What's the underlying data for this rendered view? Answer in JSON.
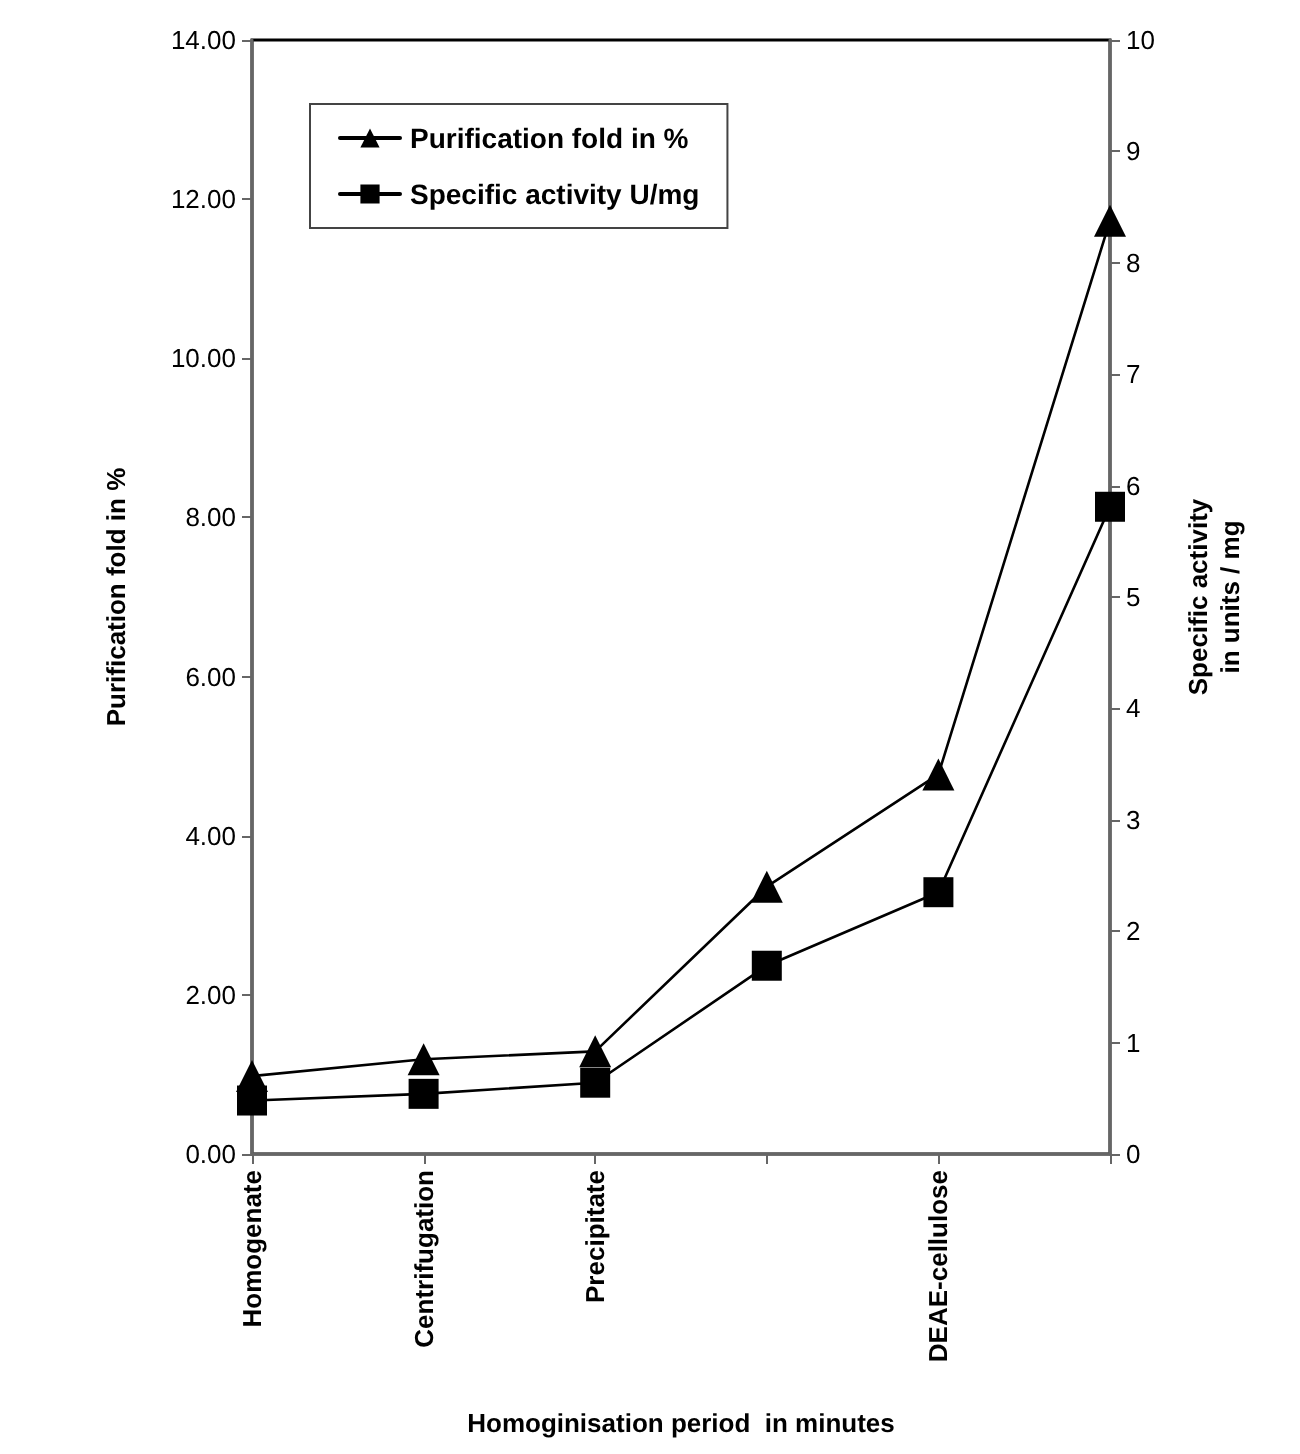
{
  "chart_data": {
    "type": "line",
    "xlabel": "Homoginisation period  in minutes",
    "ylabel": "Purification fold in %",
    "y2label": "Specific activity\nin units / mg",
    "categories": [
      "Homogenate",
      "Centrifugation",
      "Precipitate",
      null,
      "DEAE-cellulose",
      null
    ],
    "series": [
      {
        "name": "Purification fold in %",
        "color": "#000000",
        "marker": "triangle",
        "values": [
          0.98,
          1.19,
          1.29,
          3.36,
          4.77,
          11.73
        ]
      },
      {
        "name": "Specific activity U/mg",
        "color": "#000000",
        "marker": "square",
        "axis": "y2",
        "values": [
          0.48,
          0.54,
          0.64,
          1.69,
          2.35,
          5.81
        ]
      }
    ],
    "ylim": [
      0,
      14
    ],
    "yticks": [
      {
        "value": 0,
        "label": "0.00"
      },
      {
        "value": 2,
        "label": "2.00"
      },
      {
        "value": 4,
        "label": "4.00"
      },
      {
        "value": 6,
        "label": "6.00"
      },
      {
        "value": 8,
        "label": "8.00"
      },
      {
        "value": 10,
        "label": "10.00"
      },
      {
        "value": 12,
        "label": "12.00"
      },
      {
        "value": 14,
        "label": "14.00"
      }
    ],
    "y2lim": [
      0,
      10
    ],
    "y2ticks": [
      0,
      1,
      2,
      3,
      4,
      5,
      6,
      7,
      8,
      9,
      10
    ],
    "grid": false,
    "legend": "top left",
    "line_style": "solid"
  }
}
